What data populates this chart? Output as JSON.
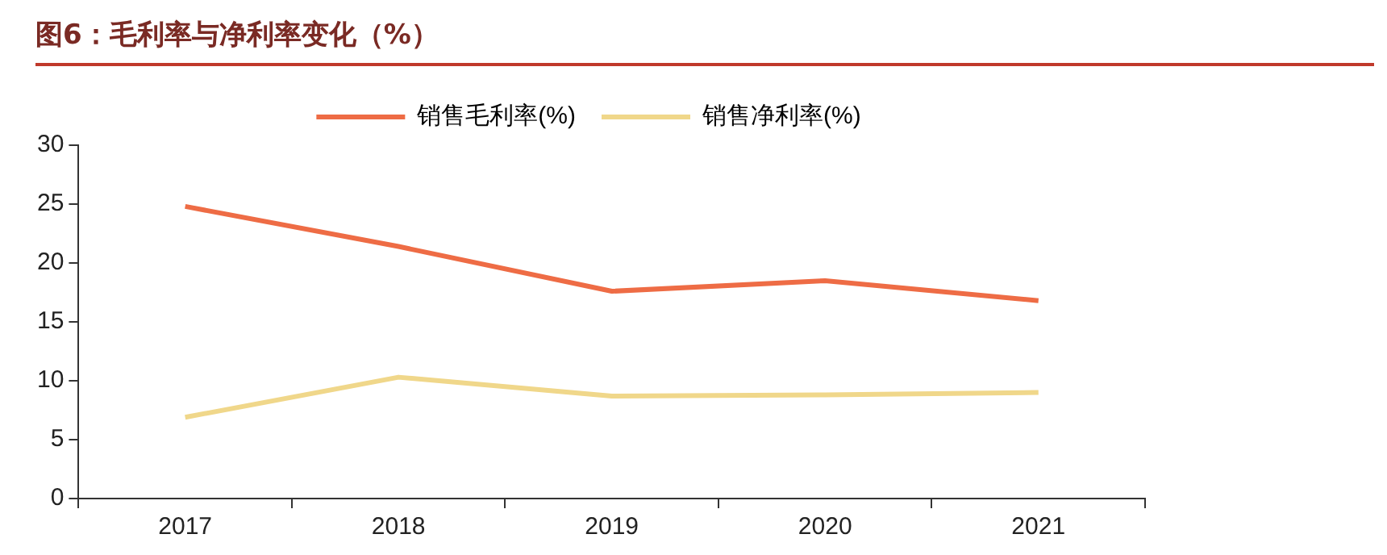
{
  "chart_data": {
    "type": "line",
    "title": "图6：毛利率与净利率变化（%）",
    "categories": [
      "2017",
      "2018",
      "2019",
      "2020",
      "2021"
    ],
    "series": [
      {
        "name": "销售毛利率(%)",
        "color": "#ee6c45",
        "values": [
          24.8,
          21.4,
          17.6,
          18.5,
          16.8
        ]
      },
      {
        "name": "销售净利率(%)",
        "color": "#f0d78a",
        "values": [
          6.9,
          10.3,
          8.7,
          8.8,
          9.0
        ]
      }
    ],
    "ylim": [
      0,
      30
    ],
    "yticks": [
      0,
      5,
      10,
      15,
      20,
      25,
      30
    ],
    "grid": false,
    "legend": "top",
    "marker": "none"
  }
}
